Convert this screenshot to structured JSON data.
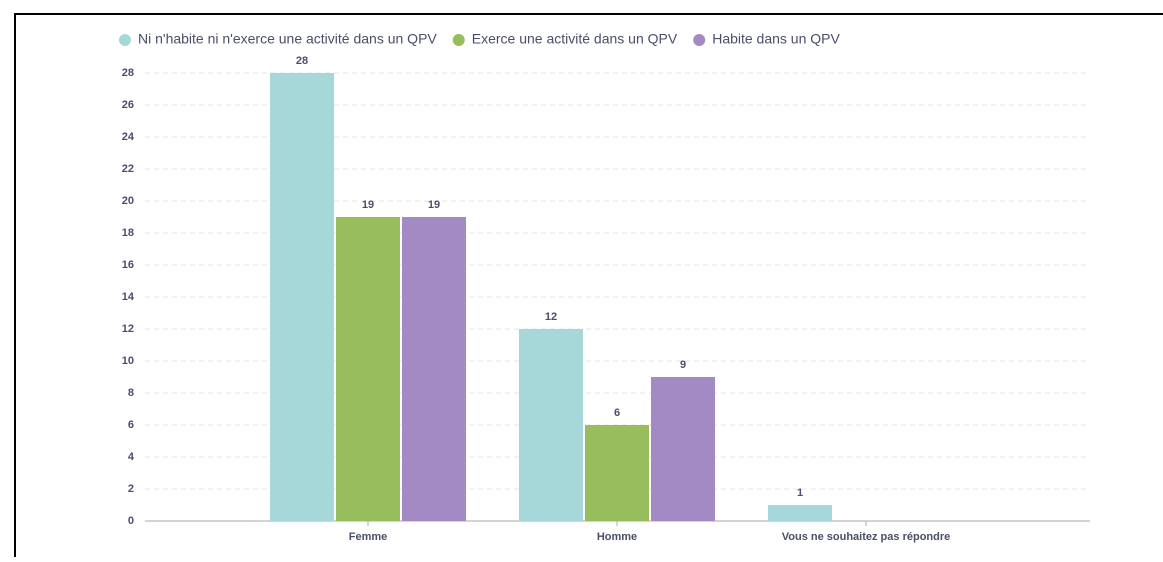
{
  "chart_data": {
    "type": "bar",
    "categories": [
      "Femme",
      "Homme",
      "Vous ne souhaitez pas répondre"
    ],
    "series": [
      {
        "name": "Ni n'habite ni n'exerce une activité dans un QPV",
        "color": "#a6d8d9",
        "values": [
          28,
          12,
          1
        ]
      },
      {
        "name": "Exerce une activité dans un QPV",
        "color": "#97bd5d",
        "values": [
          19,
          6,
          null
        ]
      },
      {
        "name": "Habite dans un QPV",
        "color": "#a48ac4",
        "values": [
          19,
          9,
          null
        ]
      }
    ],
    "ylim": [
      0,
      28
    ],
    "yticks": [
      0,
      2,
      4,
      6,
      8,
      10,
      12,
      14,
      16,
      18,
      20,
      22,
      24,
      26,
      28
    ],
    "grid": true,
    "legend": "top"
  }
}
